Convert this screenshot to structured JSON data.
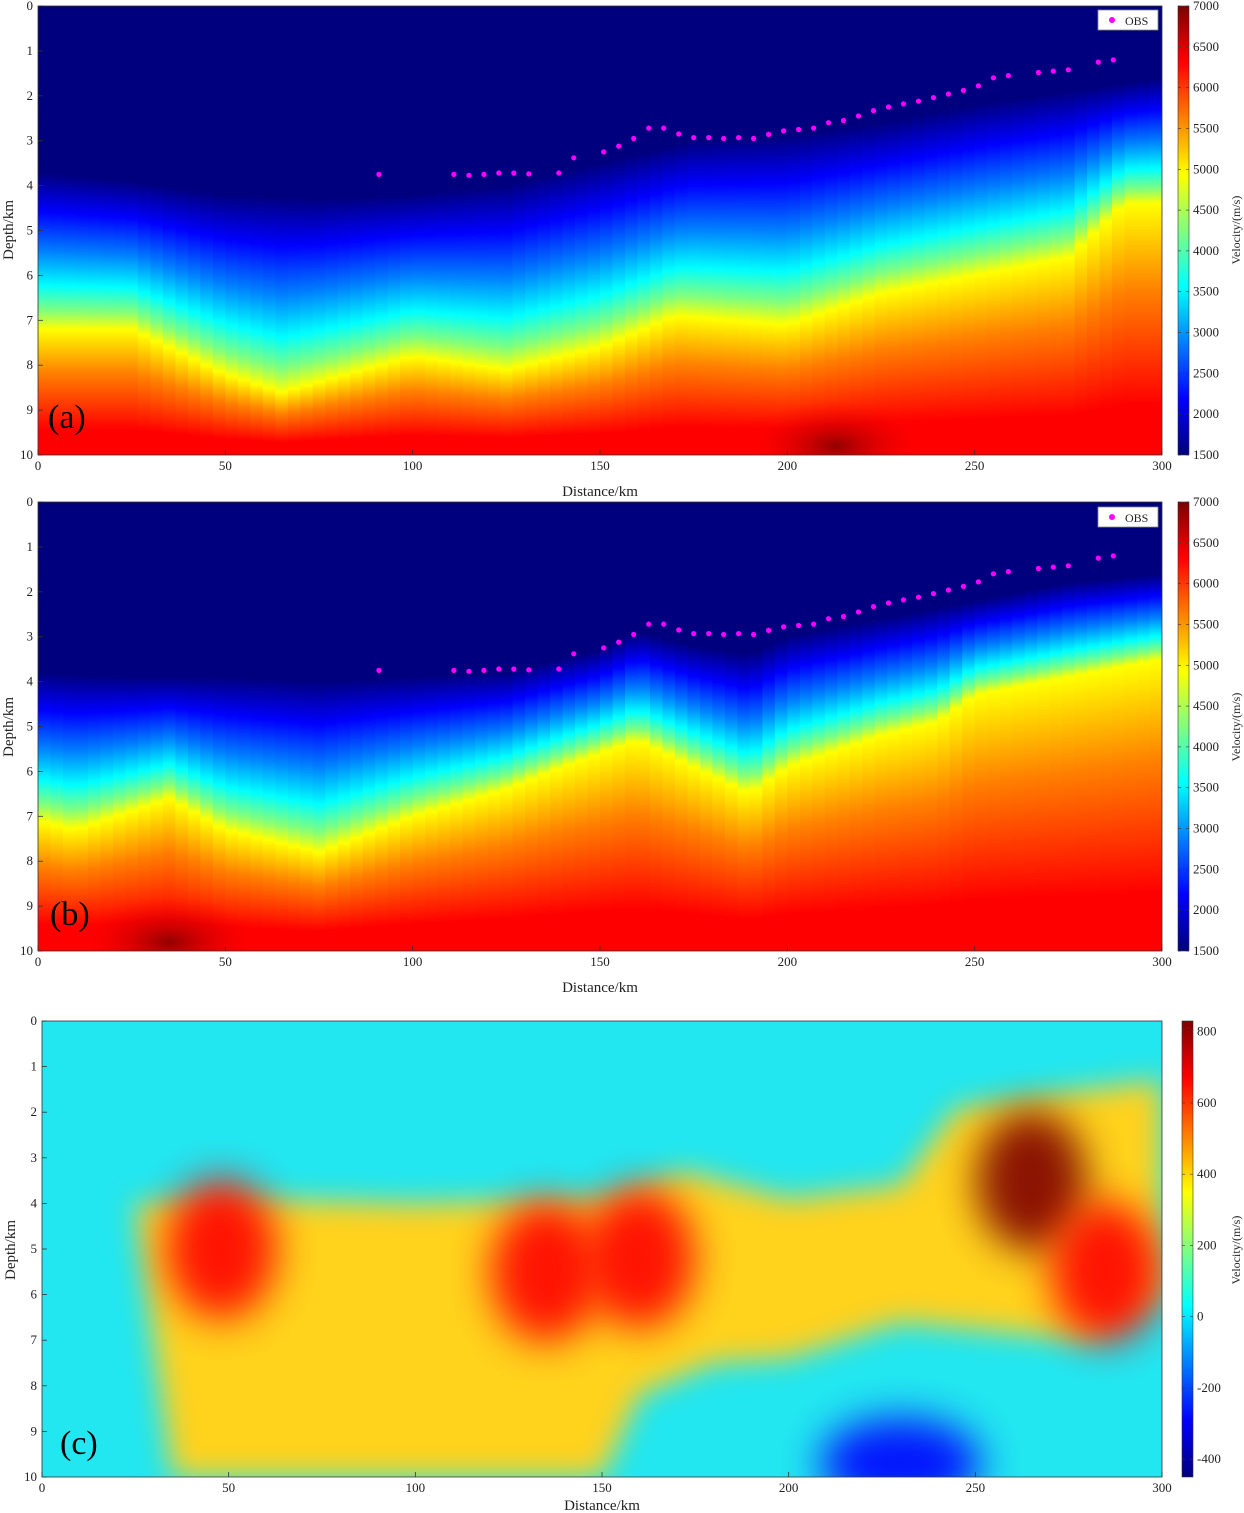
{
  "colors": {
    "obs_marker": "#ff00ff",
    "jet": [
      "#00007f",
      "#0000ff",
      "#007fff",
      "#00ffff",
      "#7fff7f",
      "#ffff00",
      "#ff7f00",
      "#ff0000",
      "#7f0000"
    ]
  },
  "obs_stations": [
    [
      91,
      3.75
    ],
    [
      111,
      3.75
    ],
    [
      115,
      3.77
    ],
    [
      119,
      3.75
    ],
    [
      123,
      3.72
    ],
    [
      127,
      3.72
    ],
    [
      131,
      3.74
    ],
    [
      139,
      3.72
    ],
    [
      143,
      3.38
    ],
    [
      151,
      3.25
    ],
    [
      155,
      3.12
    ],
    [
      159,
      2.95
    ],
    [
      163,
      2.72
    ],
    [
      167,
      2.72
    ],
    [
      171,
      2.85
    ],
    [
      175,
      2.93
    ],
    [
      179,
      2.93
    ],
    [
      183,
      2.95
    ],
    [
      187,
      2.93
    ],
    [
      191,
      2.95
    ],
    [
      195,
      2.86
    ],
    [
      199,
      2.78
    ],
    [
      203,
      2.75
    ],
    [
      207,
      2.72
    ],
    [
      211,
      2.6
    ],
    [
      215,
      2.55
    ],
    [
      219,
      2.45
    ],
    [
      223,
      2.33
    ],
    [
      227,
      2.25
    ],
    [
      231,
      2.18
    ],
    [
      235,
      2.12
    ],
    [
      239,
      2.04
    ],
    [
      243,
      1.96
    ],
    [
      247,
      1.88
    ],
    [
      251,
      1.78
    ],
    [
      255,
      1.6
    ],
    [
      259,
      1.55
    ],
    [
      267,
      1.48
    ],
    [
      271,
      1.45
    ],
    [
      275,
      1.42
    ],
    [
      283,
      1.25
    ],
    [
      287,
      1.2
    ]
  ],
  "chart_data": [
    {
      "type": "heatmap",
      "panel_label": "(a)",
      "xlabel": "Distance/km",
      "ylabel": "Depth/km",
      "xlim": [
        0,
        300
      ],
      "ylim": [
        0,
        10
      ],
      "x_ticks": [
        "0",
        "50",
        "100",
        "150",
        "200",
        "250",
        "300"
      ],
      "y_ticks": [
        "0",
        "1",
        "2",
        "3",
        "4",
        "5",
        "6",
        "7",
        "8",
        "9",
        "10"
      ],
      "colorbar": {
        "label": "Velocity/(m/s)",
        "range": [
          1500,
          7000
        ],
        "ticks": [
          "1500",
          "2000",
          "2500",
          "3000",
          "3500",
          "4000",
          "4500",
          "5000",
          "5500",
          "6000",
          "6500",
          "7000"
        ]
      },
      "legend": {
        "label": "OBS",
        "position": "top-right"
      },
      "horizon_depth_km": {
        "x": [
          0,
          25,
          50,
          75,
          100,
          125,
          150,
          175,
          200,
          225,
          250,
          275,
          300
        ],
        "values": [
          3.7,
          3.9,
          4.2,
          4.3,
          4.2,
          4.0,
          3.5,
          3.0,
          2.9,
          2.6,
          2.2,
          1.9,
          1.6
        ]
      },
      "yellow_isoline_depth_km": {
        "x": [
          0,
          25,
          50,
          65,
          100,
          125,
          150,
          170,
          200,
          225,
          250,
          275,
          290,
          300
        ],
        "values": [
          7.2,
          7.2,
          8.2,
          8.6,
          7.8,
          8.1,
          7.6,
          6.9,
          7.1,
          6.4,
          6.0,
          5.6,
          4.4,
          4.4
        ]
      },
      "max_velocity_region": {
        "x": 213,
        "depth": 9.8,
        "value": 6900
      }
    },
    {
      "type": "heatmap",
      "panel_label": "(b)",
      "xlabel": "Distance/km",
      "ylabel": "Depth/km",
      "xlim": [
        0,
        300
      ],
      "ylim": [
        0,
        10
      ],
      "x_ticks": [
        "0",
        "50",
        "100",
        "150",
        "200",
        "250",
        "300"
      ],
      "y_ticks": [
        "0",
        "1",
        "2",
        "3",
        "4",
        "5",
        "6",
        "7",
        "8",
        "9",
        "10"
      ],
      "colorbar": {
        "label": "Velocity/(m/s)",
        "range": [
          1500,
          7000
        ],
        "ticks": [
          "1500",
          "2000",
          "2500",
          "3000",
          "3500",
          "4000",
          "4500",
          "5000",
          "5500",
          "6000",
          "6500",
          "7000"
        ]
      },
      "legend": {
        "label": "OBS",
        "position": "top-right"
      },
      "horizon_depth_km": {
        "x": [
          0,
          25,
          50,
          75,
          100,
          125,
          150,
          160,
          175,
          190,
          200,
          225,
          250,
          275,
          300
        ],
        "values": [
          3.8,
          3.9,
          3.9,
          4.0,
          3.9,
          3.8,
          3.3,
          2.9,
          3.2,
          3.4,
          3.0,
          2.6,
          2.2,
          1.8,
          1.6
        ]
      },
      "yellow_isoline_depth_km": {
        "x": [
          0,
          10,
          35,
          50,
          75,
          100,
          125,
          140,
          160,
          175,
          190,
          200,
          225,
          240,
          250,
          275,
          300
        ],
        "values": [
          7.1,
          7.3,
          6.6,
          7.3,
          7.8,
          7.0,
          6.4,
          5.9,
          5.3,
          5.9,
          6.5,
          5.9,
          5.2,
          4.9,
          4.3,
          3.9,
          3.5
        ]
      },
      "max_velocity_region": {
        "x": 35,
        "depth": 9.8,
        "value": 6900
      }
    },
    {
      "type": "heatmap",
      "panel_label": "(c)",
      "xlabel": "Distance/km",
      "ylabel": "Depth/km",
      "xlim": [
        0,
        300
      ],
      "ylim": [
        0,
        10
      ],
      "x_ticks": [
        "0",
        "50",
        "100",
        "150",
        "200",
        "250",
        "300"
      ],
      "y_ticks": [
        "0",
        "1",
        "2",
        "3",
        "4",
        "5",
        "6",
        "7",
        "8",
        "9",
        "10"
      ],
      "colorbar": {
        "label": "Velocity/(m/s)",
        "range": [
          -450,
          830
        ],
        "ticks": [
          "-400",
          "-200",
          "0",
          "200",
          "400",
          "600",
          "800"
        ]
      },
      "anomalies": [
        {
          "x": 48,
          "depth": 5.0,
          "value": 720
        },
        {
          "x": 135,
          "depth": 5.5,
          "value": 620
        },
        {
          "x": 160,
          "depth": 5.2,
          "value": 560
        },
        {
          "x": 265,
          "depth": 3.5,
          "value": 820
        },
        {
          "x": 285,
          "depth": 5.5,
          "value": 650
        },
        {
          "x": 230,
          "depth": 9.7,
          "value": -430
        }
      ]
    }
  ]
}
